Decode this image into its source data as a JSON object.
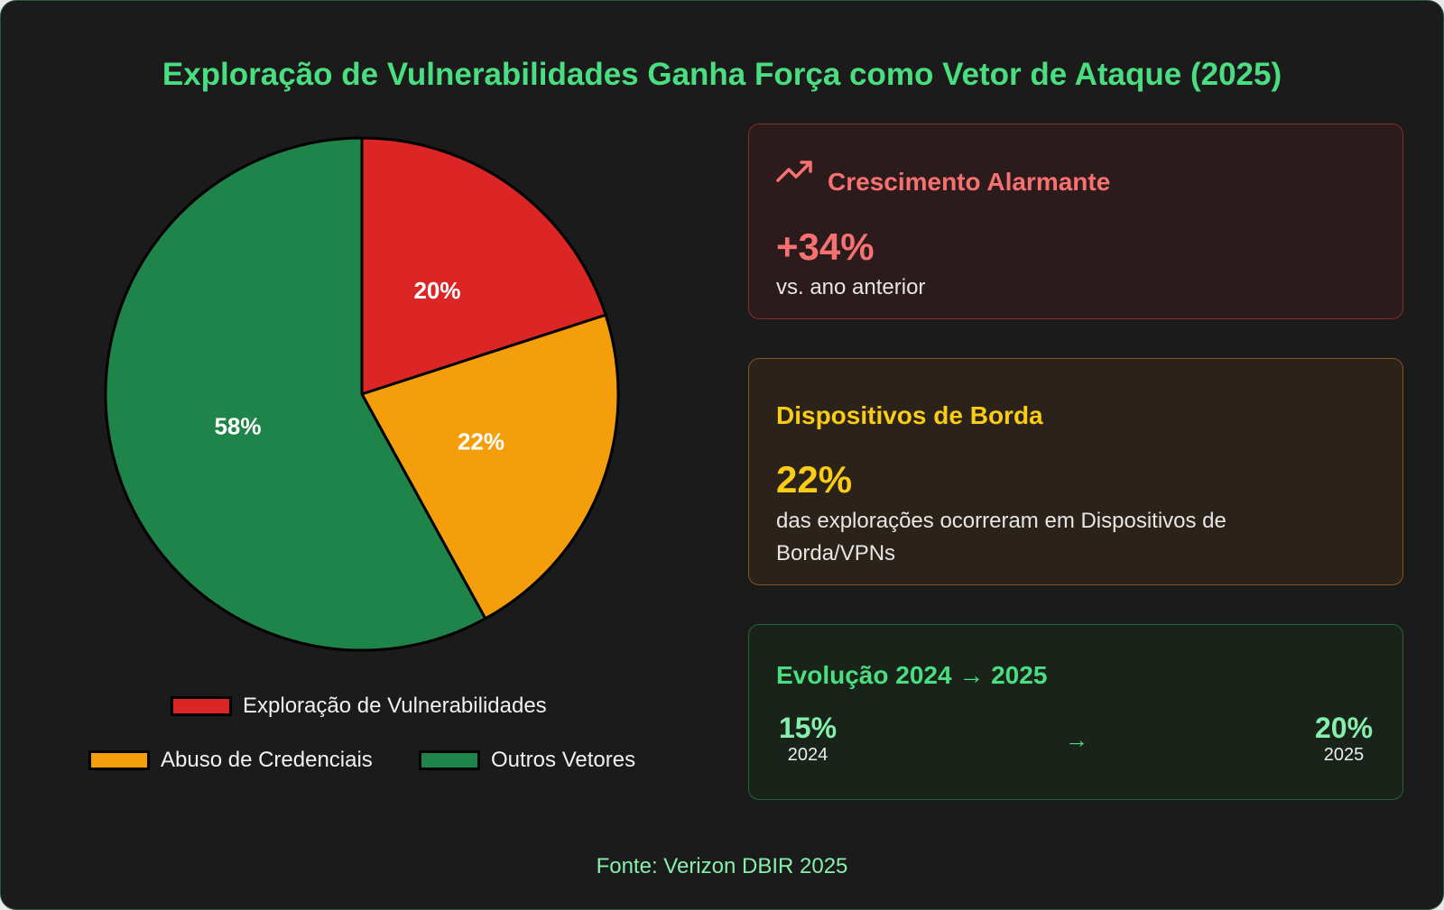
{
  "title": "Exploração de Vulnerabilidades Ganha Força como Vetor de Ataque (2025)",
  "chart_data": {
    "type": "pie",
    "title": "",
    "slices": [
      {
        "label": "Exploração de Vulnerabilidades",
        "value": 20,
        "display": "20%",
        "color": "#dc2626"
      },
      {
        "label": "Abuso de Credenciais",
        "value": 22,
        "display": "22%",
        "color": "#f59e0b"
      },
      {
        "label": "Outros Vetores",
        "value": 58,
        "display": "58%",
        "color": "#1e8449"
      }
    ],
    "legend_position": "bottom"
  },
  "panels": {
    "growth": {
      "icon": "trending-up-icon",
      "heading": "Crescimento Alarmante",
      "value": "+34%",
      "caption": "vs. ano anterior",
      "color": "#f87171"
    },
    "edge": {
      "heading": "Dispositivos de Borda",
      "value": "22%",
      "caption": "das explorações ocorreram em Dispositivos de Borda/VPNs",
      "color": "#facc15"
    },
    "evolution": {
      "heading": "Evolução 2024 → 2025",
      "from_value": "15%",
      "from_year": "2024",
      "arrow": "→",
      "to_value": "20%",
      "to_year": "2025",
      "color": "#4ade80"
    }
  },
  "source": "Fonte: Verizon DBIR 2025"
}
